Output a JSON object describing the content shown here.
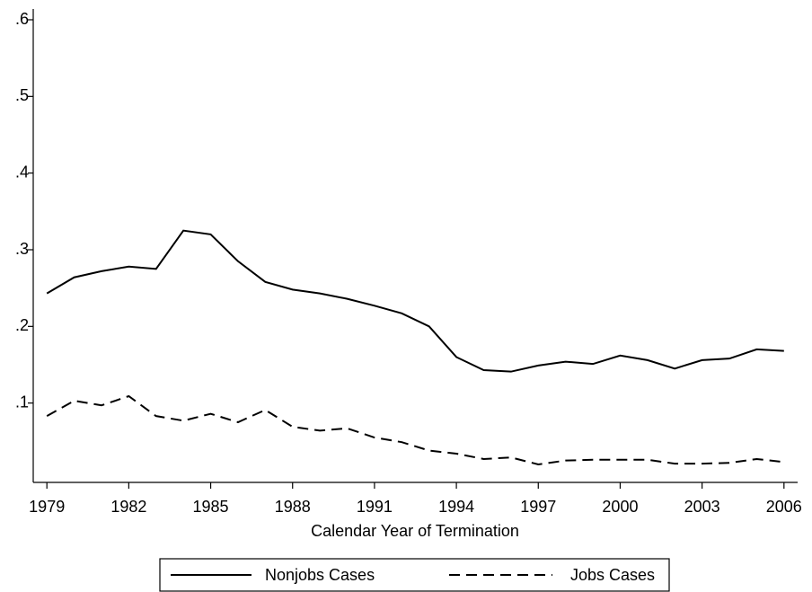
{
  "chart_data": {
    "type": "line",
    "x_label": "Calendar Year of Termination",
    "x": [
      1979,
      1980,
      1981,
      1982,
      1983,
      1984,
      1985,
      1986,
      1987,
      1988,
      1989,
      1990,
      1991,
      1992,
      1993,
      1994,
      1995,
      1996,
      1997,
      1998,
      1999,
      2000,
      2001,
      2002,
      2003,
      2004,
      2005,
      2006
    ],
    "series": [
      {
        "name": "Nonjobs Cases",
        "color": "#000000",
        "line_style": "solid",
        "values": [
          0.243,
          0.264,
          0.272,
          0.278,
          0.275,
          0.325,
          0.32,
          0.285,
          0.258,
          0.248,
          0.243,
          0.236,
          0.227,
          0.217,
          0.2,
          0.16,
          0.143,
          0.141,
          0.149,
          0.154,
          0.151,
          0.162,
          0.156,
          0.145,
          0.156,
          0.158,
          0.17,
          0.168
        ]
      },
      {
        "name": "Jobs Cases",
        "color": "#000000",
        "line_style": "dashed",
        "values": [
          0.083,
          0.103,
          0.097,
          0.109,
          0.083,
          0.077,
          0.086,
          0.075,
          0.091,
          0.069,
          0.064,
          0.067,
          0.055,
          0.049,
          0.038,
          0.034,
          0.027,
          0.029,
          0.02,
          0.025,
          0.026,
          0.026,
          0.026,
          0.021,
          0.021,
          0.022,
          0.027,
          0.023
        ]
      }
    ],
    "xlim": [
      1978.5,
      2006.5
    ],
    "xticks": [
      1979,
      1982,
      1985,
      1988,
      1991,
      1994,
      1997,
      2000,
      2003,
      2006
    ],
    "ylim": [
      0,
      0.6
    ],
    "yticks": [
      {
        "value": 0.1,
        "label": ".1"
      },
      {
        "value": 0.2,
        "label": ".2"
      },
      {
        "value": 0.3,
        "label": ".3"
      },
      {
        "value": 0.4,
        "label": ".4"
      },
      {
        "value": 0.5,
        "label": ".5"
      },
      {
        "value": 0.6,
        "label": ".6"
      }
    ],
    "grid": false,
    "legend_position": "bottom"
  }
}
